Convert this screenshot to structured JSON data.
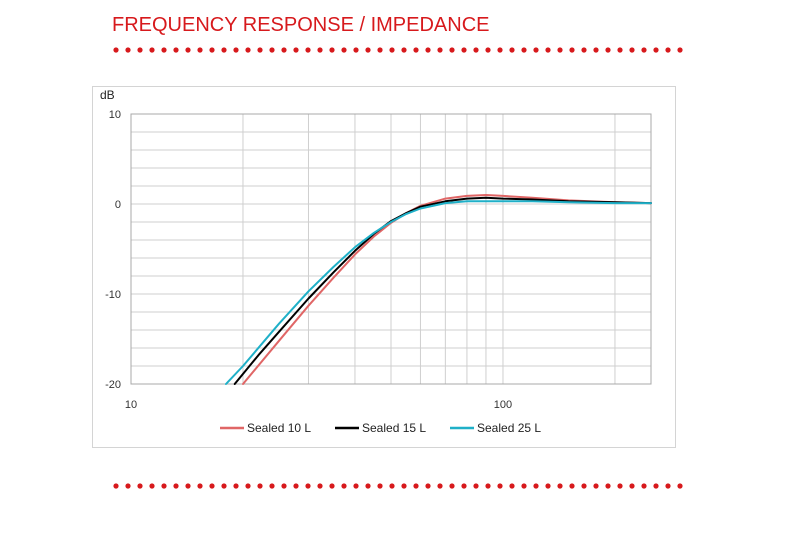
{
  "page": {
    "title": "FREQUENCY RESPONSE / IMPEDANCE",
    "accent_color": "#d7191c"
  },
  "chart_data": {
    "type": "line",
    "title": "",
    "ylabel": "dB",
    "xlabel": "",
    "x_scale": "log",
    "xlim": [
      10,
      250
    ],
    "ylim": [
      -20,
      10
    ],
    "x_ticks": [
      "10",
      "100"
    ],
    "y_ticks": [
      "10",
      "0",
      "-10",
      "-20"
    ],
    "grid": true,
    "legend_position": "bottom",
    "series": [
      {
        "name": "Sealed 10 L",
        "color": "#e06666",
        "x": [
          20,
          25,
          30,
          35,
          40,
          45,
          50,
          55,
          60,
          70,
          80,
          90,
          100,
          120,
          150,
          200,
          250
        ],
        "y": [
          -20,
          -15.2,
          -11.3,
          -8.2,
          -5.6,
          -3.6,
          -2.1,
          -1.0,
          -0.2,
          0.6,
          0.9,
          1.0,
          0.9,
          0.7,
          0.4,
          0.2,
          0.1
        ]
      },
      {
        "name": "Sealed 15 L",
        "color": "#000000",
        "x": [
          19,
          22,
          25,
          30,
          35,
          40,
          45,
          50,
          55,
          60,
          70,
          80,
          90,
          100,
          120,
          150,
          200,
          250
        ],
        "y": [
          -20,
          -16.8,
          -14.2,
          -10.5,
          -7.6,
          -5.2,
          -3.3,
          -1.9,
          -1.0,
          -0.3,
          0.3,
          0.6,
          0.7,
          0.6,
          0.5,
          0.3,
          0.2,
          0.1
        ]
      },
      {
        "name": "Sealed 25 L",
        "color": "#1fb0c8",
        "x": [
          18,
          20,
          25,
          30,
          35,
          40,
          45,
          50,
          55,
          60,
          70,
          80,
          90,
          100,
          120,
          150,
          200,
          250
        ],
        "y": [
          -20,
          -18.0,
          -13.3,
          -9.7,
          -7.0,
          -4.8,
          -3.2,
          -2.0,
          -1.1,
          -0.5,
          0.1,
          0.3,
          0.3,
          0.3,
          0.3,
          0.2,
          0.1,
          0.1
        ]
      }
    ]
  }
}
